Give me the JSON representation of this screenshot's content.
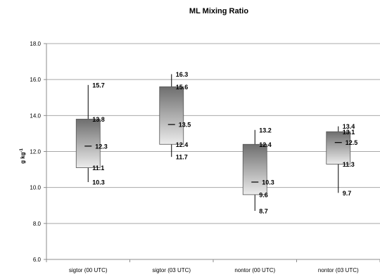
{
  "chart_data": {
    "type": "box",
    "title": "ML Mixing Ratio",
    "ylabel": "g kg",
    "ylabel_superscript": "-1",
    "ylim": [
      6.0,
      18.0
    ],
    "ytick_values": [
      6.0,
      8.0,
      10.0,
      12.0,
      14.0,
      16.0,
      18.0
    ],
    "ytick_labels": [
      "6.0",
      "8.0",
      "10.0",
      "12.0",
      "14.0",
      "16.0",
      "18.0"
    ],
    "grid": true,
    "categories": [
      "sigtor (00 UTC)",
      "sigtor (03 UTC)",
      "nontor (00 UTC)",
      "nontor (03 UTC)"
    ],
    "boxes": [
      {
        "max": 15.7,
        "q3": 13.8,
        "median": 12.3,
        "q1": 11.1,
        "min": 10.3,
        "labels": {
          "max": "15.7",
          "q3": "13.8",
          "median": "12.3",
          "q1": "11.1",
          "min": "10.3"
        }
      },
      {
        "max": 16.3,
        "q3": 15.6,
        "median": 13.5,
        "q1": 12.4,
        "min": 11.7,
        "labels": {
          "max": "16.3",
          "q3": "15.6",
          "median": "13.5",
          "q1": "12.4",
          "min": "11.7"
        }
      },
      {
        "max": 13.2,
        "q3": 12.4,
        "median": 10.3,
        "q1": 9.6,
        "min": 8.7,
        "labels": {
          "max": "13.2",
          "q3": "12.4",
          "median": "10.3",
          "q1": "9.6",
          "min": "8.7"
        }
      },
      {
        "max": 13.4,
        "q3": 13.1,
        "median": 12.5,
        "q1": 11.3,
        "min": 9.7,
        "labels": {
          "max": "13.4",
          "q3": "13.1",
          "median": "12.5",
          "q1": "11.3",
          "min": "9.7"
        }
      }
    ],
    "colors": {
      "box_dark": "#6e6e6e",
      "box_light": "#ececec",
      "grid": "#a8a8a8",
      "axis": "#8c8c8c",
      "whisker": "#000000"
    }
  }
}
